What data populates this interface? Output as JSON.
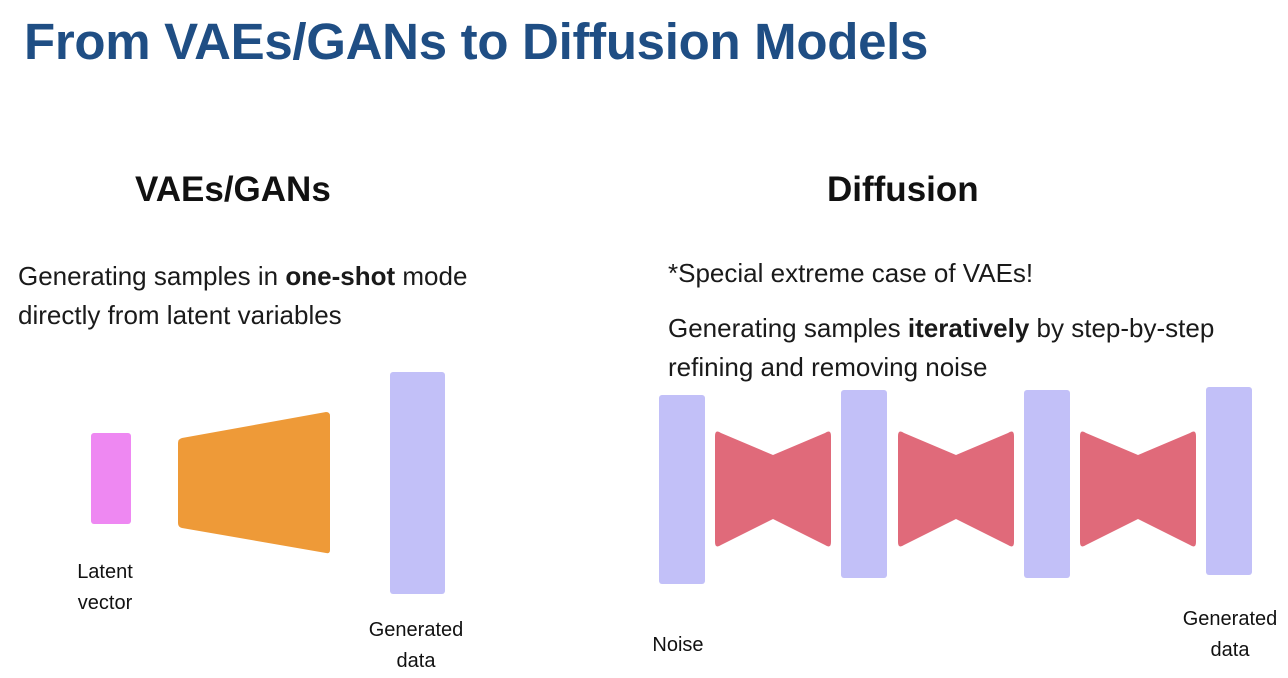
{
  "title": "From VAEs/GANs to Diffusion Models",
  "left": {
    "heading": "VAEs/GANs",
    "desc_pre": "Generating samples in ",
    "desc_bold": "one-shot",
    "desc_post": " mode directly from latent variables",
    "label_latent_line1": "Latent",
    "label_latent_line2": "vector",
    "label_generated_line1": "Generated",
    "label_generated_line2": "data"
  },
  "right": {
    "heading": "Diffusion",
    "note": "*Special extreme case of VAEs!",
    "desc_pre": "Generating samples ",
    "desc_bold": "iteratively",
    "desc_post": " by step-by-step refining and removing noise",
    "label_noise": "Noise",
    "label_generated_line1": "Generated",
    "label_generated_line2": "data"
  },
  "colors": {
    "title": "#1f4e84",
    "latent": "#ee88f2",
    "generator": "#ee9a38",
    "data_block": "#c2c0f8",
    "denoiser": "#e06a7a"
  }
}
